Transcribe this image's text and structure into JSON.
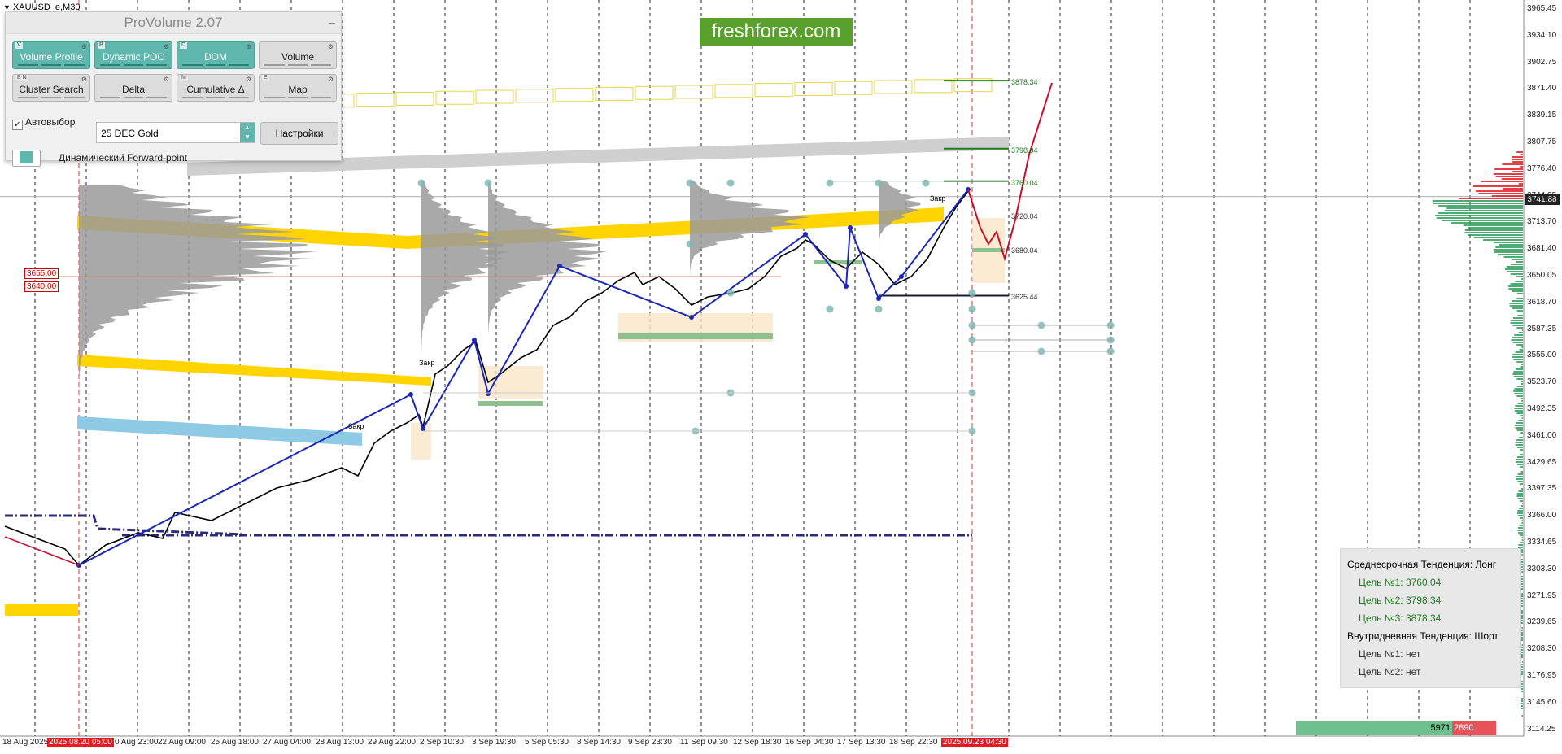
{
  "symbol": "XAUUSD_e,M30",
  "brand": "freshforex.com",
  "panel": {
    "title": "ProVolume 2.07",
    "buttons": [
      {
        "label": "Volume Profile",
        "key": "V",
        "on": true
      },
      {
        "label": "Dynamic POC",
        "key": "P",
        "on": true
      },
      {
        "label": "DOM",
        "key": "D",
        "on": true
      },
      {
        "label": "Volume",
        "key": "",
        "on": false
      },
      {
        "label": "Cluster Search",
        "key": "B  N",
        "on": false
      },
      {
        "label": "Delta",
        "key": "",
        "on": false
      },
      {
        "label": "Cumulative Δ",
        "key": "M",
        "on": false
      },
      {
        "label": "Map",
        "key": "E",
        "on": false
      }
    ],
    "autoselect_label": "Автовыбор",
    "contract": "25 DEC Gold",
    "settings_label": "Настройки",
    "forward_label": "Динамический Forward-point"
  },
  "info": {
    "mid_trend": "Среднесрочная Тенденция: Лонг",
    "mid_targets": [
      "Цель №1: 3760.04",
      "Цель №2: 3798.34",
      "Цель №3: 3878.34"
    ],
    "intra_trend": "Внутридневная Тенденция: Шорт",
    "intra_targets": [
      "Цель №1: нет",
      "Цель №2: нет"
    ]
  },
  "y_axis": [
    "3965.45",
    "3934.10",
    "3902.75",
    "3871.40",
    "3839.15",
    "3807.75",
    "3776.40",
    "3744.95",
    "3713.70",
    "3681.40",
    "3650.05",
    "3618.70",
    "3587.35",
    "3555.00",
    "3523.70",
    "3492.35",
    "3461.00",
    "3429.65",
    "3397.35",
    "3366.00",
    "3334.65",
    "3303.30",
    "3271.95",
    "3239.65",
    "3208.30",
    "3176.95",
    "3145.60",
    "3114.25"
  ],
  "current_price": "3741.88",
  "x_axis": [
    {
      "t": "18 Aug 2025",
      "red": false
    },
    {
      "t": "2025.08.20 05:00",
      "red": true
    },
    {
      "t": "0 Aug 23:00",
      "red": false
    },
    {
      "t": "22 Aug 09:00",
      "red": false
    },
    {
      "t": "25 Aug 18:00",
      "red": false
    },
    {
      "t": "27 Aug 04:00",
      "red": false
    },
    {
      "t": "28 Aug 13:00",
      "red": false
    },
    {
      "t": "29 Aug 22:00",
      "red": false
    },
    {
      "t": "2 Sep 10:30",
      "red": false
    },
    {
      "t": "3 Sep 19:30",
      "red": false
    },
    {
      "t": "5 Sep 05:30",
      "red": false
    },
    {
      "t": "8 Sep 14:30",
      "red": false
    },
    {
      "t": "9 Sep 23:30",
      "red": false
    },
    {
      "t": "11 Sep 09:30",
      "red": false
    },
    {
      "t": "12 Sep 18:30",
      "red": false
    },
    {
      "t": "16 Sep 04:30",
      "red": false
    },
    {
      "t": "17 Sep 13:30",
      "red": false
    },
    {
      "t": "18 Sep 22:30",
      "red": false
    },
    {
      "t": "2025.09.23 04:30",
      "red": true
    }
  ],
  "levels": [
    "3878.34",
    "3798.34",
    "3760.04",
    "3720.04",
    "3680.04",
    "3625.44"
  ],
  "left_levels": [
    "3655.00",
    "3640.00"
  ],
  "close_marks": [
    "Закр",
    "Закр",
    "Закр"
  ],
  "volume_bar": {
    "buy": "5971",
    "sell": "2890"
  },
  "colors": {
    "accent": "#5fb7ad",
    "brand": "#5aa02c",
    "bull": "#1f7d1f",
    "bear": "#e31b23",
    "profile": "#9a9a9a",
    "poc_yellow": "#ffd400",
    "line_blue": "#1a27b8"
  }
}
